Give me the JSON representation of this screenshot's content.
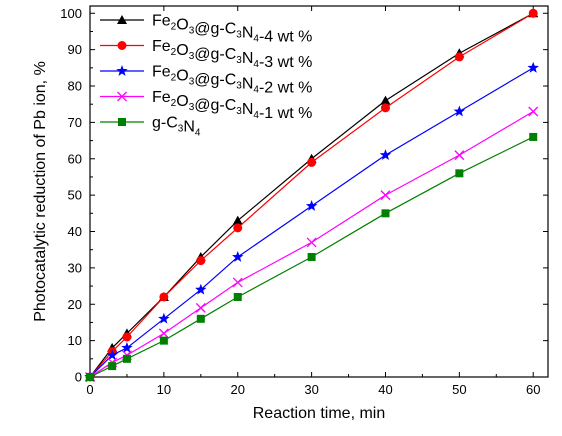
{
  "chart_data": {
    "type": "line",
    "xlabel": "Reaction time, min",
    "ylabel": "Photocatalytic  reduction of Pb ion, %",
    "xlim": [
      0,
      62
    ],
    "ylim": [
      0,
      102
    ],
    "xticks": [
      0,
      10,
      20,
      30,
      40,
      50,
      60
    ],
    "yticks": [
      0,
      10,
      20,
      30,
      40,
      50,
      60,
      70,
      80,
      90,
      100
    ],
    "grid": false,
    "legend_position": "top-left",
    "series": [
      {
        "name": "Fe2O3@g-C3N4-4 wt %",
        "name_parts": [
          [
            "Fe",
            ""
          ],
          [
            "2",
            "sub"
          ],
          [
            "O",
            ""
          ],
          [
            "3",
            "sub"
          ],
          [
            "@g-C",
            ""
          ],
          [
            "3",
            "sub"
          ],
          [
            "N",
            ""
          ],
          [
            "4",
            "sub"
          ],
          [
            "-4 wt %",
            ""
          ]
        ],
        "color": "#000000",
        "marker": "triangle",
        "x": [
          0,
          3,
          5,
          10,
          15,
          20,
          30,
          40,
          50,
          60
        ],
        "y": [
          0,
          8,
          12,
          22,
          33,
          43,
          60,
          76,
          89,
          100
        ]
      },
      {
        "name": "Fe2O3@g-C3N4-3 wt %",
        "name_parts": [
          [
            "Fe",
            ""
          ],
          [
            "2",
            "sub"
          ],
          [
            "O",
            ""
          ],
          [
            "3",
            "sub"
          ],
          [
            "@g-C",
            ""
          ],
          [
            "3",
            "sub"
          ],
          [
            "N",
            ""
          ],
          [
            "4",
            "sub"
          ],
          [
            "-3 wt %",
            ""
          ]
        ],
        "color": "#ff0000",
        "marker": "circle",
        "x": [
          0,
          3,
          5,
          10,
          15,
          20,
          30,
          40,
          50,
          60
        ],
        "y": [
          0,
          7,
          11,
          22,
          32,
          41,
          59,
          74,
          88,
          100
        ]
      },
      {
        "name": "Fe2O3@g-C3N4-2 wt %",
        "name_parts": [
          [
            "Fe",
            ""
          ],
          [
            "2",
            "sub"
          ],
          [
            "O",
            ""
          ],
          [
            "3",
            "sub"
          ],
          [
            "@g-C",
            ""
          ],
          [
            "3",
            "sub"
          ],
          [
            "N",
            ""
          ],
          [
            "4",
            "sub"
          ],
          [
            "-2 wt %",
            ""
          ]
        ],
        "color": "#0000ff",
        "marker": "star",
        "x": [
          0,
          3,
          5,
          10,
          15,
          20,
          30,
          40,
          50,
          60
        ],
        "y": [
          0,
          6,
          8,
          16,
          24,
          33,
          47,
          61,
          73,
          85
        ]
      },
      {
        "name": "Fe2O3@g-C3N4-1 wt %",
        "name_parts": [
          [
            "Fe",
            ""
          ],
          [
            "2",
            "sub"
          ],
          [
            "O",
            ""
          ],
          [
            "3",
            "sub"
          ],
          [
            "@g-C",
            ""
          ],
          [
            "3",
            "sub"
          ],
          [
            "N",
            ""
          ],
          [
            "4",
            "sub"
          ],
          [
            "-1 wt %",
            ""
          ]
        ],
        "color": "#ff00ff",
        "marker": "x",
        "x": [
          0,
          3,
          5,
          10,
          15,
          20,
          30,
          40,
          50,
          60
        ],
        "y": [
          0,
          4,
          6,
          12,
          19,
          26,
          37,
          50,
          61,
          73
        ]
      },
      {
        "name": "g-C3N4",
        "name_parts": [
          [
            "g-C",
            ""
          ],
          [
            "3",
            "sub"
          ],
          [
            "N",
            ""
          ],
          [
            "4",
            "sub"
          ]
        ],
        "color": "#008000",
        "marker": "square",
        "x": [
          0,
          3,
          5,
          10,
          15,
          20,
          30,
          40,
          50,
          60
        ],
        "y": [
          0,
          3,
          5,
          10,
          16,
          22,
          33,
          45,
          56,
          66
        ]
      }
    ]
  }
}
